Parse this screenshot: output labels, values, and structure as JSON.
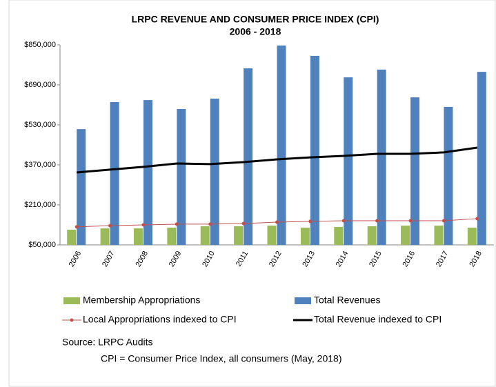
{
  "chart_data": {
    "type": "bar",
    "title": "LRPC REVENUE AND CONSUMER PRICE INDEX (CPI)",
    "subtitle": "2006 - 2018",
    "categories": [
      "2006",
      "2007",
      "2008",
      "2009",
      "2010",
      "2011",
      "2012",
      "2013",
      "2014",
      "2015",
      "2016",
      "2017",
      "2018"
    ],
    "series": [
      {
        "name": "Membership Appropriations",
        "type": "bar",
        "color": "#9bbb59",
        "values": [
          110700,
          116000,
          116000,
          119000,
          124500,
          124500,
          127000,
          119000,
          122000,
          124500,
          127000,
          127000,
          119000
        ]
      },
      {
        "name": "Total Revenues",
        "type": "bar",
        "color": "#4f81bd",
        "values": [
          513000,
          621000,
          629000,
          593500,
          635000,
          756000,
          847000,
          806000,
          720000,
          751000,
          640000,
          602000,
          742000
        ]
      },
      {
        "name": "Local Appropriations indexed to CPI",
        "type": "line",
        "color": "#c0504d",
        "values": [
          122000,
          127000,
          130000,
          133000,
          133000,
          135500,
          141000,
          144000,
          146500,
          146500,
          146500,
          146500,
          155000
        ]
      },
      {
        "name": "Total Revenue indexed to CPI",
        "type": "line",
        "color": "#000000",
        "values": [
          339700,
          351000,
          362000,
          375500,
          373000,
          381000,
          392000,
          400000,
          406000,
          414000,
          414000,
          420000,
          439000
        ]
      }
    ],
    "ylim": [
      50000,
      850000
    ],
    "yticks": [
      {
        "value": 50000,
        "label": "$50,000"
      },
      {
        "value": 210000,
        "label": "$210,000"
      },
      {
        "value": 370000,
        "label": "$370,000"
      },
      {
        "value": 530000,
        "label": "$530,000"
      },
      {
        "value": 690000,
        "label": "$690,000"
      },
      {
        "value": 850000,
        "label": "$850,000"
      }
    ],
    "source": "Source: LRPC Audits",
    "note": "CPI = Consumer Price Index, all consumers (May, 2018)"
  }
}
